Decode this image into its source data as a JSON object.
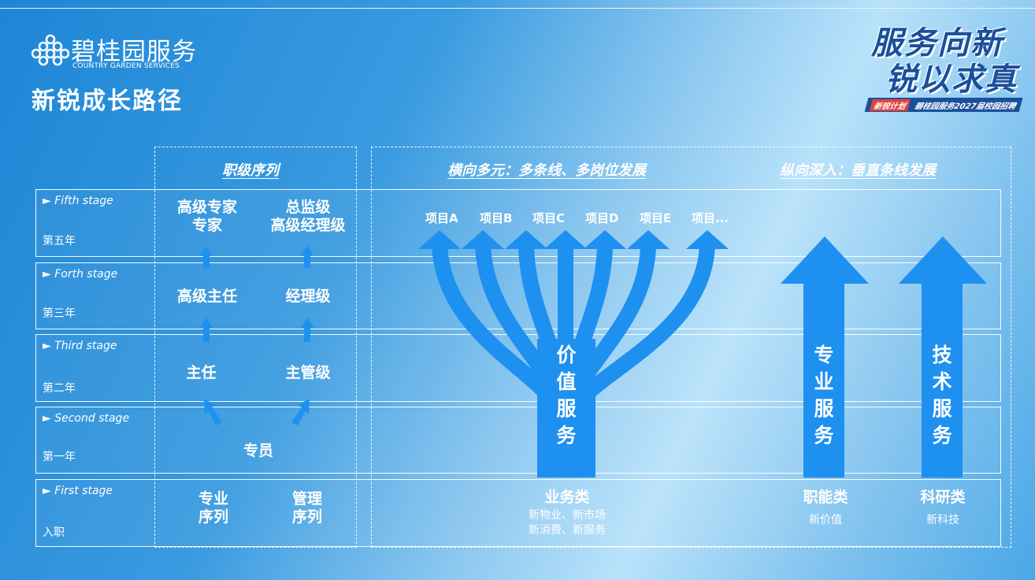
{
  "header": {
    "logo_cn": "碧桂园服务",
    "logo_en": "COUNTRY GARDEN SERVICES",
    "page_title": "新锐成长路径"
  },
  "badge": {
    "line1": "服务向新",
    "line2": "锐以求真",
    "tag": "新锐计划",
    "caption": "碧桂园服务2027届校园招聘",
    "accent_color": "#e2423b",
    "brand_color": "#1a4f9c"
  },
  "section_heads": {
    "rank": "职级序列",
    "horizontal": "横向多元：多条线、多岗位发展",
    "vertical": "纵向深入：垂直条线发展"
  },
  "stages": [
    {
      "en": "► Fifth stage",
      "cn": "第五年"
    },
    {
      "en": "► Forth stage",
      "cn": "第三年"
    },
    {
      "en": "► Third stage",
      "cn": "第二年"
    },
    {
      "en": "► Second stage",
      "cn": "第一年"
    },
    {
      "en": "► First stage",
      "cn": "入职"
    }
  ],
  "ladder": {
    "professional": {
      "fifth_1": "高级专家",
      "fifth_2": "专家",
      "forth": "高级主任",
      "third": "主任",
      "entry_1": "专业",
      "entry_2": "序列"
    },
    "management": {
      "fifth_1": "总监级",
      "fifth_2": "高级经理级",
      "forth": "经理级",
      "third": "主管级",
      "entry_1": "管理",
      "entry_2": "序列"
    },
    "second": "专员"
  },
  "projects": [
    "项目A",
    "项目B",
    "项目C",
    "项目D",
    "项目E",
    "项目..."
  ],
  "trunks": {
    "value": [
      "价",
      "值",
      "服",
      "务"
    ],
    "professional": [
      "专",
      "业",
      "服",
      "务"
    ],
    "tech": [
      "技",
      "术",
      "服",
      "务"
    ]
  },
  "categories": {
    "business": {
      "title": "业务类",
      "line1": "新物业、新市场",
      "line2": "新消费、新服务"
    },
    "function": {
      "title": "职能类",
      "sub": "新价值"
    },
    "research": {
      "title": "科研类",
      "sub": "新科技"
    }
  },
  "colors": {
    "arrow": "#1e90f0"
  }
}
